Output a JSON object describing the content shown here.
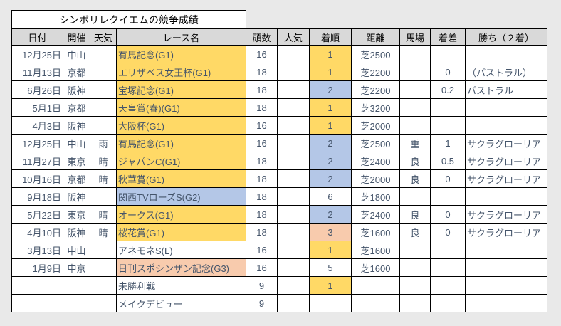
{
  "title": "シンボリレクイエムの競争成績",
  "columns": [
    "日付",
    "開催",
    "天気",
    "レース名",
    "頭数",
    "人気",
    "着順",
    "距離",
    "馬場",
    "着差",
    "勝ち（２着）"
  ],
  "colors": {
    "yellow": "#FFD966",
    "blue": "#B4C7E7",
    "peach": "#F8CBAD",
    "header_bg": "#D9D9D9",
    "page_bg": "#E9E9E9",
    "title_bg": "#FFFFFF",
    "border": "#000000",
    "date_text": "#2E75B6",
    "body_text": "#44546A"
  },
  "rows": [
    {
      "date": "12月25日",
      "venue": "中山",
      "weather": "",
      "race": "有馬記念(G1)",
      "race_bg": "yellow",
      "heads": "16",
      "pop": "",
      "finish": "1",
      "finish_bg": "yellow",
      "dist": "芝2500",
      "going": "",
      "margin": "",
      "winner": ""
    },
    {
      "date": "11月13日",
      "venue": "京都",
      "weather": "",
      "race": "エリザベス女王杯(G1)",
      "race_bg": "yellow",
      "heads": "18",
      "pop": "",
      "finish": "1",
      "finish_bg": "yellow",
      "dist": "芝2200",
      "going": "",
      "margin": "0",
      "winner": "（パストラル）"
    },
    {
      "date": "6月26日",
      "venue": "阪神",
      "weather": "",
      "race": "宝塚記念(G1)",
      "race_bg": "yellow",
      "heads": "18",
      "pop": "",
      "finish": "2",
      "finish_bg": "blue",
      "dist": "芝2200",
      "going": "",
      "margin": "0.2",
      "winner": "パストラル"
    },
    {
      "date": "5月1日",
      "venue": "京都",
      "weather": "",
      "race": "天皇賞(春)(G1)",
      "race_bg": "yellow",
      "heads": "18",
      "pop": "",
      "finish": "1",
      "finish_bg": "yellow",
      "dist": "芝3200",
      "going": "",
      "margin": "",
      "winner": ""
    },
    {
      "date": "4月3日",
      "venue": "阪神",
      "weather": "",
      "race": "大阪杯(G1)",
      "race_bg": "yellow",
      "heads": "16",
      "pop": "",
      "finish": "1",
      "finish_bg": "yellow",
      "dist": "芝2000",
      "going": "",
      "margin": "",
      "winner": ""
    },
    {
      "date": "12月25日",
      "venue": "中山",
      "weather": "雨",
      "race": "有馬記念(G1)",
      "race_bg": "yellow",
      "heads": "16",
      "pop": "",
      "finish": "2",
      "finish_bg": "blue",
      "dist": "芝2500",
      "going": "重",
      "margin": "1",
      "winner": "サクラグローリア"
    },
    {
      "date": "11月27日",
      "venue": "東京",
      "weather": "晴",
      "race": "ジャパンC(G1)",
      "race_bg": "yellow",
      "heads": "18",
      "pop": "",
      "finish": "2",
      "finish_bg": "blue",
      "dist": "芝2400",
      "going": "良",
      "margin": "0.5",
      "winner": "サクラグローリア"
    },
    {
      "date": "10月16日",
      "venue": "京都",
      "weather": "晴",
      "race": "秋華賞(G1)",
      "race_bg": "yellow",
      "heads": "18",
      "pop": "",
      "finish": "2",
      "finish_bg": "blue",
      "dist": "芝2000",
      "going": "良",
      "margin": "0",
      "winner": "サクラグローリア"
    },
    {
      "date": "9月18日",
      "venue": "阪神",
      "weather": "",
      "race": "関西TVローズS(G2)",
      "race_bg": "blue",
      "heads": "18",
      "pop": "",
      "finish": "6",
      "finish_bg": "",
      "dist": "芝1800",
      "going": "",
      "margin": "",
      "winner": ""
    },
    {
      "date": "5月22日",
      "venue": "東京",
      "weather": "晴",
      "race": "オークス(G1)",
      "race_bg": "yellow",
      "heads": "18",
      "pop": "",
      "finish": "2",
      "finish_bg": "blue",
      "dist": "芝2400",
      "going": "良",
      "margin": "0",
      "winner": "サクラグローリア"
    },
    {
      "date": "4月10日",
      "venue": "阪神",
      "weather": "晴",
      "race": "桜花賞(G1)",
      "race_bg": "yellow",
      "heads": "18",
      "pop": "",
      "finish": "3",
      "finish_bg": "peach",
      "dist": "芝1600",
      "going": "良",
      "margin": "0",
      "winner": "サクラグローリア"
    },
    {
      "date": "3月13日",
      "venue": "中山",
      "weather": "",
      "race": "アネモネS(L)",
      "race_bg": "",
      "heads": "16",
      "pop": "",
      "finish": "1",
      "finish_bg": "yellow",
      "dist": "芝1600",
      "going": "",
      "margin": "",
      "winner": ""
    },
    {
      "date": "1月9日",
      "venue": "中京",
      "weather": "",
      "race": "日刊スポシンザン記念(G3)",
      "race_bg": "peach",
      "heads": "16",
      "pop": "",
      "finish": "5",
      "finish_bg": "",
      "dist": "芝1600",
      "going": "",
      "margin": "",
      "winner": ""
    },
    {
      "date": "",
      "venue": "",
      "weather": "",
      "race": "未勝利戦",
      "race_bg": "",
      "heads": "9",
      "pop": "",
      "finish": "1",
      "finish_bg": "yellow",
      "dist": "",
      "going": "",
      "margin": "",
      "winner": ""
    },
    {
      "date": "",
      "venue": "",
      "weather": "",
      "race": "メイクデビュー",
      "race_bg": "",
      "heads": "9",
      "pop": "",
      "finish": "",
      "finish_bg": "",
      "dist": "",
      "going": "",
      "margin": "",
      "winner": ""
    }
  ]
}
